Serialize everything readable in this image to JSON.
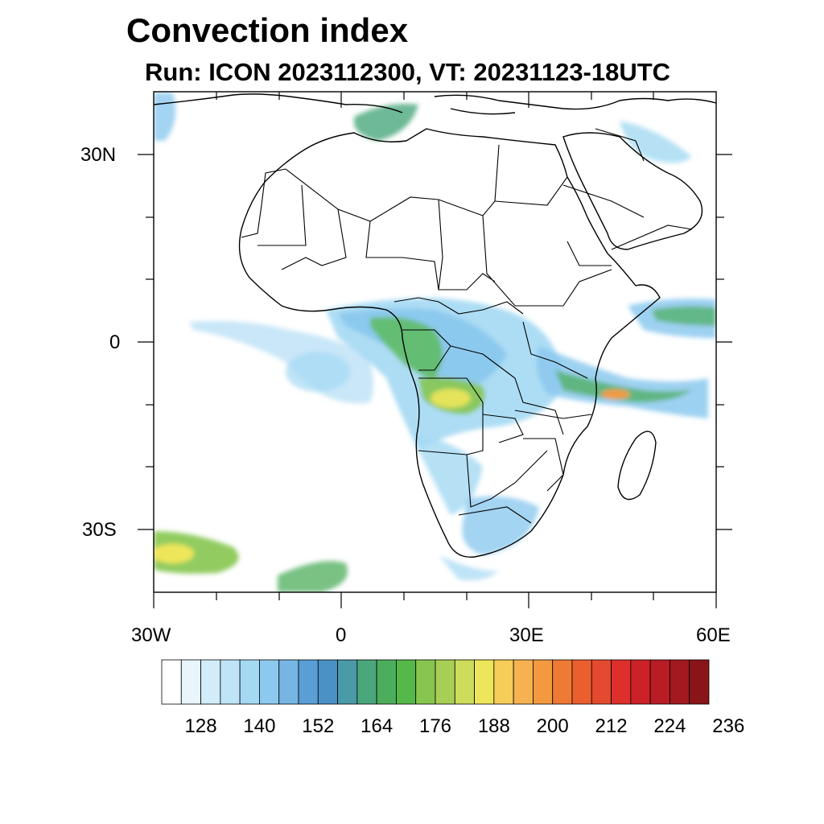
{
  "title": "Convection index",
  "subtitle": "Run: ICON 2023112300,  VT: 20231123-18UTC",
  "axes": {
    "x_labels": [
      "30W",
      "0",
      "30E",
      "60E"
    ],
    "y_labels": [
      "30N",
      "0",
      "30S"
    ]
  },
  "colorbar": {
    "colors": [
      "#ffffff",
      "#e9f5fc",
      "#d2ecf9",
      "#bfe3f7",
      "#a4d9f3",
      "#8cc9ee",
      "#76b5e4",
      "#5a9ed5",
      "#4a91c6",
      "#4a9aa8",
      "#4aa77c",
      "#4cae5c",
      "#55b84a",
      "#86c64f",
      "#a8cf55",
      "#cddc5a",
      "#eee65a",
      "#f7cd5a",
      "#f6b251",
      "#f39a40",
      "#ef7a35",
      "#eb5e2e",
      "#e44a2d",
      "#dd302c",
      "#cc2127",
      "#b81c24",
      "#a2191f",
      "#8a1518"
    ],
    "tick_labels": [
      "128",
      "140",
      "152",
      "164",
      "176",
      "188",
      "200",
      "212",
      "224",
      "236"
    ]
  }
}
